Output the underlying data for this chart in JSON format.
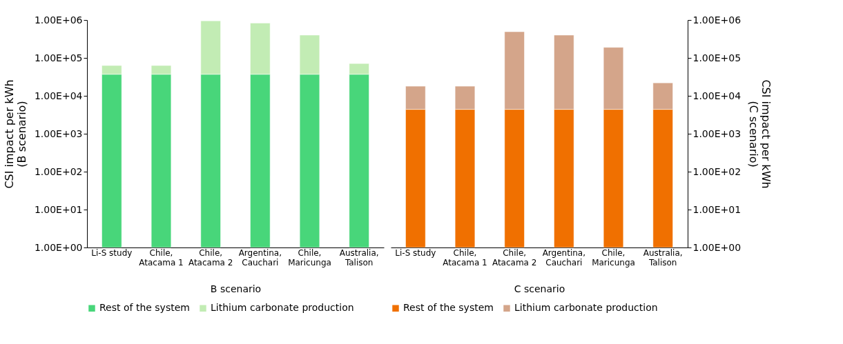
{
  "chart_data": [
    {
      "type": "bar",
      "stacked": true,
      "log": "y",
      "ylabel": "CSI impact per kWh\n(B scenario)",
      "xlabel": "B scenario",
      "legend": "bottom",
      "categories": [
        "Li-S study",
        "Chile,\nAtacama 1",
        "Chile,\nAtacama 2",
        "Argentina,\nCauchari",
        "Chile,\nMaricunga",
        "Australia,\nTalison"
      ],
      "ylim": [
        1,
        1000000
      ],
      "yticks": [
        {
          "value": 1,
          "label": "1.00E+00"
        },
        {
          "value": 10,
          "label": "1.00E+01"
        },
        {
          "value": 100,
          "label": "1.00E+02"
        },
        {
          "value": 1000,
          "label": "1.00E+03"
        },
        {
          "value": 10000,
          "label": "1.00E+04"
        },
        {
          "value": 100000,
          "label": "1.00E+05"
        },
        {
          "value": 1000000,
          "label": "1.00E+06"
        }
      ],
      "series": [
        {
          "name": "Rest of the system",
          "color": "#48d67a",
          "values": [
            37000,
            37000,
            37000,
            37000,
            37000,
            37000
          ]
        },
        {
          "name": "Lithium carbonate production",
          "color": "#c2ecb4",
          "values": [
            26000,
            26000,
            913000,
            793000,
            363000,
            34000
          ]
        }
      ]
    },
    {
      "type": "bar",
      "stacked": true,
      "log": "y2",
      "y2label": "CSI impact per kWh\n(C scenario)",
      "xlabel": "C scenario",
      "legend": "bottom",
      "categories": [
        "Li-S study",
        "Chile,\nAtacama 1",
        "Chile,\nAtacama 2",
        "Argentina,\nCauchari",
        "Chile,\nMaricunga",
        "Australia,\nTalison"
      ],
      "y2lim": [
        1,
        1000000
      ],
      "y2ticks": [
        {
          "value": 1,
          "label": "1.00E+00"
        },
        {
          "value": 10,
          "label": "1.00E+01"
        },
        {
          "value": 100,
          "label": "1.00E+02"
        },
        {
          "value": 1000,
          "label": "1.00E+03"
        },
        {
          "value": 10000,
          "label": "1.00E+04"
        },
        {
          "value": 100000,
          "label": "1.00E+05"
        },
        {
          "value": 1000000,
          "label": "1.00E+06"
        }
      ],
      "series": [
        {
          "name": "Rest of the system",
          "color": "#f07000",
          "axis": "y2",
          "values": [
            4400,
            4400,
            4400,
            4400,
            4400,
            4400
          ]
        },
        {
          "name": "Lithium carbonate production",
          "color": "#d4a58a",
          "axis": "y2",
          "values": [
            13500,
            13500,
            485600,
            395600,
            185600,
            17600
          ]
        }
      ]
    }
  ]
}
